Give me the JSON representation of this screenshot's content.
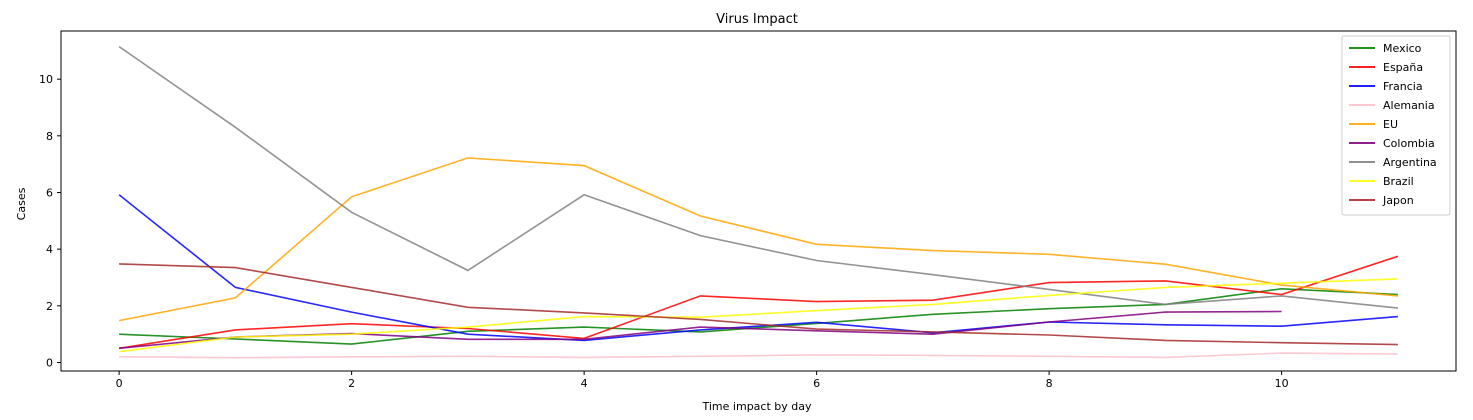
{
  "chart_data": {
    "type": "line",
    "title": "Virus Impact",
    "xlabel": "Time impact by day",
    "ylabel": "Cases",
    "xlim": [
      -0.5,
      11.5
    ],
    "ylim": [
      -0.3,
      11.7
    ],
    "xticks": [
      0,
      2,
      4,
      6,
      8,
      10
    ],
    "yticks": [
      0,
      2,
      4,
      6,
      8,
      10
    ],
    "grid": false,
    "legend_position": "top-right",
    "x": [
      0,
      1,
      2,
      3,
      4,
      5,
      6,
      7,
      8,
      9,
      10,
      11
    ],
    "series": [
      {
        "name": "Mexico",
        "color": "#008000",
        "values": [
          1.0,
          0.83,
          0.65,
          1.1,
          1.25,
          1.08,
          1.38,
          1.7,
          1.9,
          2.05,
          2.6,
          2.4
        ]
      },
      {
        "name": "España",
        "color": "#ff0000",
        "values": [
          0.5,
          1.15,
          1.37,
          1.2,
          0.85,
          2.35,
          2.15,
          2.2,
          2.82,
          2.88,
          2.4,
          3.75
        ]
      },
      {
        "name": "Francia",
        "color": "#0000ff",
        "values": [
          5.92,
          2.65,
          1.78,
          1.0,
          0.78,
          1.15,
          1.42,
          1.05,
          1.43,
          1.33,
          1.28,
          1.62
        ]
      },
      {
        "name": "Alemania",
        "color": "#ffc0cb",
        "values": [
          0.2,
          0.17,
          0.2,
          0.22,
          0.18,
          0.22,
          0.27,
          0.25,
          0.22,
          0.18,
          0.33,
          0.3
        ]
      },
      {
        "name": "EU",
        "color": "#ffa500",
        "values": [
          1.48,
          2.28,
          5.85,
          7.22,
          6.95,
          5.17,
          4.17,
          3.95,
          3.82,
          3.47,
          2.73,
          2.35
        ]
      },
      {
        "name": "Colombia",
        "color": "#800080",
        "values": [
          0.5,
          0.9,
          1.02,
          0.82,
          0.82,
          1.25,
          1.12,
          1.0,
          1.43,
          1.78,
          1.8,
          null
        ]
      },
      {
        "name": "Argentina",
        "color": "#808080",
        "values": [
          11.15,
          8.3,
          5.3,
          3.25,
          5.92,
          4.48,
          3.6,
          3.1,
          2.58,
          2.05,
          2.35,
          1.92
        ]
      },
      {
        "name": "Brazil",
        "color": "#ffff00",
        "values": [
          0.38,
          0.9,
          1.0,
          1.25,
          1.62,
          1.6,
          1.83,
          2.05,
          2.37,
          2.65,
          2.8,
          2.95
        ]
      },
      {
        "name": "Japon",
        "color": "#a52a2a",
        "values": [
          3.48,
          3.35,
          2.65,
          1.95,
          1.75,
          1.52,
          1.18,
          1.08,
          0.97,
          0.78,
          0.7,
          0.63
        ]
      }
    ]
  }
}
